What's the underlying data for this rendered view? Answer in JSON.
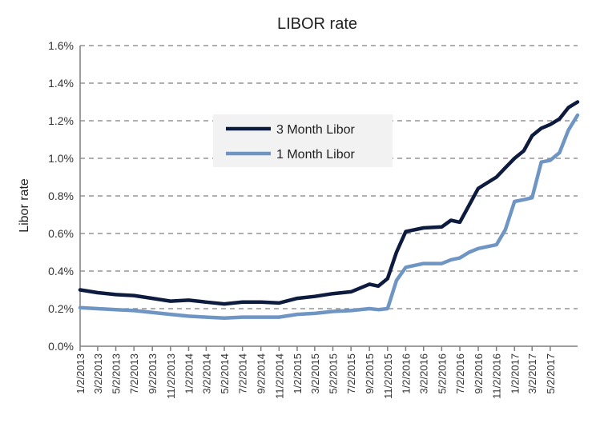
{
  "chart_data": {
    "type": "line",
    "title": "LIBOR rate",
    "xlabel": "",
    "ylabel": "Libor rate",
    "ylim": [
      0,
      1.6
    ],
    "yticks": [
      "0.0%",
      "0.2%",
      "0.4%",
      "0.6%",
      "0.8%",
      "1.0%",
      "1.2%",
      "1.4%",
      "1.6%"
    ],
    "xticks": [
      "1/2/2013",
      "3/2/2013",
      "5/2/2013",
      "7/2/2013",
      "9/2/2013",
      "11/2/2013",
      "1/2/2014",
      "3/2/2014",
      "5/2/2014",
      "7/2/2014",
      "9/2/2014",
      "11/2/2014",
      "1/2/2015",
      "3/2/2015",
      "5/2/2015",
      "7/2/2015",
      "9/2/2015",
      "11/2/2015",
      "1/2/2016",
      "3/2/2016",
      "5/2/2016",
      "7/2/2016",
      "9/2/2016",
      "11/2/2016",
      "1/2/2017",
      "3/2/2017",
      "5/2/2017"
    ],
    "x_start": "1/2/2013",
    "x_end": "8/2/2017",
    "grid": true,
    "legend_position": "top-center",
    "series": [
      {
        "name": "3 Month Libor",
        "color": "#0d1b3e",
        "points": [
          [
            "1/2/2013",
            0.3
          ],
          [
            "3/2/2013",
            0.285
          ],
          [
            "5/2/2013",
            0.275
          ],
          [
            "7/2/2013",
            0.27
          ],
          [
            "9/2/2013",
            0.255
          ],
          [
            "11/2/2013",
            0.24
          ],
          [
            "1/2/2014",
            0.245
          ],
          [
            "3/2/2014",
            0.235
          ],
          [
            "5/2/2014",
            0.225
          ],
          [
            "7/2/2014",
            0.235
          ],
          [
            "9/2/2014",
            0.235
          ],
          [
            "11/2/2014",
            0.23
          ],
          [
            "1/2/2015",
            0.255
          ],
          [
            "3/2/2015",
            0.265
          ],
          [
            "5/2/2015",
            0.28
          ],
          [
            "7/2/2015",
            0.29
          ],
          [
            "9/2/2015",
            0.33
          ],
          [
            "10/2/2015",
            0.32
          ],
          [
            "11/2/2015",
            0.36
          ],
          [
            "12/2/2015",
            0.5
          ],
          [
            "1/2/2016",
            0.61
          ],
          [
            "3/2/2016",
            0.63
          ],
          [
            "5/2/2016",
            0.635
          ],
          [
            "6/2/2016",
            0.67
          ],
          [
            "7/2/2016",
            0.66
          ],
          [
            "8/2/2016",
            0.75
          ],
          [
            "9/2/2016",
            0.84
          ],
          [
            "10/2/2016",
            0.87
          ],
          [
            "11/2/2016",
            0.9
          ],
          [
            "12/2/2016",
            0.95
          ],
          [
            "1/2/2017",
            1.0
          ],
          [
            "2/2/2017",
            1.04
          ],
          [
            "3/2/2017",
            1.12
          ],
          [
            "4/2/2017",
            1.16
          ],
          [
            "5/2/2017",
            1.18
          ],
          [
            "6/2/2017",
            1.21
          ],
          [
            "7/2/2017",
            1.27
          ],
          [
            "8/2/2017",
            1.3
          ]
        ]
      },
      {
        "name": "1 Month Libor",
        "color": "#6f95c4",
        "points": [
          [
            "1/2/2013",
            0.205
          ],
          [
            "3/2/2013",
            0.2
          ],
          [
            "5/2/2013",
            0.195
          ],
          [
            "7/2/2013",
            0.19
          ],
          [
            "9/2/2013",
            0.18
          ],
          [
            "11/2/2013",
            0.17
          ],
          [
            "1/2/2014",
            0.16
          ],
          [
            "3/2/2014",
            0.155
          ],
          [
            "5/2/2014",
            0.15
          ],
          [
            "7/2/2014",
            0.155
          ],
          [
            "9/2/2014",
            0.155
          ],
          [
            "11/2/2014",
            0.155
          ],
          [
            "1/2/2015",
            0.17
          ],
          [
            "3/2/2015",
            0.175
          ],
          [
            "5/2/2015",
            0.185
          ],
          [
            "7/2/2015",
            0.19
          ],
          [
            "9/2/2015",
            0.2
          ],
          [
            "10/2/2015",
            0.195
          ],
          [
            "11/2/2015",
            0.2
          ],
          [
            "12/2/2015",
            0.35
          ],
          [
            "1/2/2016",
            0.42
          ],
          [
            "3/2/2016",
            0.44
          ],
          [
            "5/2/2016",
            0.44
          ],
          [
            "6/2/2016",
            0.46
          ],
          [
            "7/2/2016",
            0.47
          ],
          [
            "8/2/2016",
            0.5
          ],
          [
            "9/2/2016",
            0.52
          ],
          [
            "10/2/2016",
            0.53
          ],
          [
            "11/2/2016",
            0.54
          ],
          [
            "12/2/2016",
            0.62
          ],
          [
            "1/2/2017",
            0.77
          ],
          [
            "2/2/2017",
            0.78
          ],
          [
            "3/2/2017",
            0.79
          ],
          [
            "4/2/2017",
            0.98
          ],
          [
            "5/2/2017",
            0.99
          ],
          [
            "6/2/2017",
            1.03
          ],
          [
            "7/2/2017",
            1.15
          ],
          [
            "8/2/2017",
            1.23
          ]
        ]
      }
    ]
  }
}
